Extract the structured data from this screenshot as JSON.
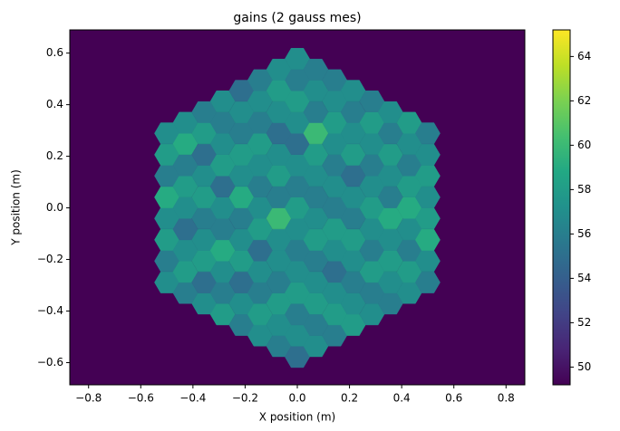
{
  "chart_data": {
    "type": "hexmap",
    "title": "gains (2 gauss mes)",
    "x_label": "X position (m)",
    "y_label": "Y position (m)",
    "colormap": "viridis",
    "clim": [
      49.2,
      65.2
    ],
    "cticks": [
      50,
      52,
      54,
      56,
      58,
      60,
      62,
      64
    ],
    "xlim": [
      -0.872,
      0.872
    ],
    "ylim": [
      -0.686,
      0.69
    ],
    "xticks": [
      {
        "value": -0.8,
        "label": "−0.8"
      },
      {
        "value": -0.6,
        "label": "−0.6"
      },
      {
        "value": -0.4,
        "label": "−0.4"
      },
      {
        "value": -0.2,
        "label": "−0.2"
      },
      {
        "value": 0,
        "label": "0.0"
      },
      {
        "value": 0.2,
        "label": "0.2"
      },
      {
        "value": 0.4,
        "label": "0.4"
      },
      {
        "value": 0.6,
        "label": "0.6"
      },
      {
        "value": 0.8,
        "label": "0.8"
      }
    ],
    "yticks": [
      {
        "value": -0.6,
        "label": "−0.6"
      },
      {
        "value": -0.4,
        "label": "−0.4"
      },
      {
        "value": -0.2,
        "label": "−0.2"
      },
      {
        "value": 0,
        "label": "0.0"
      },
      {
        "value": 0.2,
        "label": "0.2"
      },
      {
        "value": 0.4,
        "label": "0.4"
      },
      {
        "value": 0.6,
        "label": "0.6"
      }
    ],
    "columns": [
      {
        "x": -0.5,
        "y": [
          -0.289,
          -0.206,
          -0.124,
          -0.041,
          0.041,
          0.124,
          0.206,
          0.289
        ],
        "values": [
          57,
          56,
          58,
          57,
          59,
          56,
          58,
          57
        ]
      },
      {
        "x": -0.429,
        "y": [
          -0.33,
          -0.248,
          -0.165,
          -0.083,
          0,
          0.083,
          0.165,
          0.248,
          0.33
        ],
        "values": [
          56,
          58,
          57,
          55,
          57,
          58,
          56,
          59,
          57
        ]
      },
      {
        "x": -0.357,
        "y": [
          -0.371,
          -0.289,
          -0.206,
          -0.124,
          -0.041,
          0.041,
          0.124,
          0.206,
          0.289,
          0.371
        ],
        "values": [
          57,
          55,
          58,
          57,
          56,
          58,
          57,
          55,
          58,
          56
        ]
      },
      {
        "x": -0.286,
        "y": [
          -0.413,
          -0.33,
          -0.248,
          -0.165,
          -0.083,
          0,
          0.083,
          0.165,
          0.248,
          0.33,
          0.413
        ],
        "values": [
          58,
          56,
          57,
          59,
          56,
          57,
          55,
          58,
          57,
          56,
          57
        ]
      },
      {
        "x": -0.214,
        "y": [
          -0.454,
          -0.371,
          -0.289,
          -0.206,
          -0.124,
          -0.041,
          0.041,
          0.124,
          0.206,
          0.289,
          0.371,
          0.454
        ],
        "values": [
          56,
          57,
          55,
          58,
          57,
          56,
          59,
          57,
          58,
          56,
          57,
          55
        ]
      },
      {
        "x": -0.143,
        "y": [
          -0.495,
          -0.413,
          -0.33,
          -0.248,
          -0.165,
          -0.083,
          0,
          0.083,
          0.165,
          0.248,
          0.33,
          0.413,
          0.495
        ],
        "values": [
          57,
          58,
          56,
          57,
          55,
          58,
          57,
          56,
          57,
          58,
          56,
          57,
          56
        ]
      },
      {
        "x": -0.071,
        "y": [
          -0.536,
          -0.454,
          -0.371,
          -0.289,
          -0.206,
          -0.124,
          -0.041,
          0.041,
          0.124,
          0.206,
          0.289,
          0.371,
          0.454,
          0.536
        ],
        "values": [
          56,
          57,
          58,
          56,
          57,
          57,
          60,
          56,
          58,
          57,
          55,
          57,
          58,
          57
        ]
      },
      {
        "x": 0,
        "y": [
          -0.578,
          -0.495,
          -0.413,
          -0.33,
          -0.248,
          -0.165,
          -0.083,
          0,
          0.083,
          0.165,
          0.248,
          0.33,
          0.413,
          0.495,
          0.578
        ],
        "values": [
          55,
          57,
          56,
          58,
          57,
          56,
          57,
          58,
          56,
          57,
          55,
          57,
          58,
          56,
          57
        ]
      },
      {
        "x": 0.071,
        "y": [
          -0.536,
          -0.454,
          -0.371,
          -0.289,
          -0.206,
          -0.124,
          -0.041,
          0.041,
          0.124,
          0.206,
          0.289,
          0.371,
          0.454,
          0.536
        ],
        "values": [
          57,
          56,
          58,
          57,
          56,
          58,
          57,
          56,
          57,
          58,
          60,
          56,
          57,
          56
        ]
      },
      {
        "x": 0.143,
        "y": [
          -0.495,
          -0.413,
          -0.33,
          -0.248,
          -0.165,
          -0.083,
          0,
          0.083,
          0.165,
          0.248,
          0.33,
          0.413,
          0.495
        ],
        "values": [
          56,
          58,
          57,
          55,
          57,
          58,
          56,
          57,
          56,
          57,
          58,
          57,
          56
        ]
      },
      {
        "x": 0.214,
        "y": [
          -0.454,
          -0.371,
          -0.289,
          -0.206,
          -0.124,
          -0.041,
          0.041,
          0.124,
          0.206,
          0.289,
          0.371,
          0.454
        ],
        "values": [
          58,
          57,
          56,
          57,
          58,
          56,
          57,
          55,
          58,
          57,
          56,
          57
        ]
      },
      {
        "x": 0.286,
        "y": [
          -0.413,
          -0.33,
          -0.248,
          -0.165,
          -0.083,
          0,
          0.083,
          0.165,
          0.248,
          0.33,
          0.413
        ],
        "values": [
          57,
          56,
          58,
          56,
          57,
          58,
          57,
          56,
          57,
          58,
          56
        ]
      },
      {
        "x": 0.357,
        "y": [
          -0.371,
          -0.289,
          -0.206,
          -0.124,
          -0.041,
          0.041,
          0.124,
          0.206,
          0.289,
          0.371
        ],
        "values": [
          56,
          57,
          58,
          57,
          59,
          56,
          57,
          58,
          56,
          57
        ]
      },
      {
        "x": 0.429,
        "y": [
          -0.33,
          -0.248,
          -0.165,
          -0.083,
          0,
          0.083,
          0.165,
          0.248,
          0.33
        ],
        "values": [
          57,
          58,
          56,
          57,
          59,
          58,
          56,
          57,
          58
        ]
      },
      {
        "x": 0.5,
        "y": [
          -0.289,
          -0.206,
          -0.124,
          -0.041,
          0.041,
          0.124,
          0.206,
          0.289
        ],
        "values": [
          56,
          57,
          59,
          58,
          57,
          58,
          57,
          56
        ]
      }
    ]
  }
}
